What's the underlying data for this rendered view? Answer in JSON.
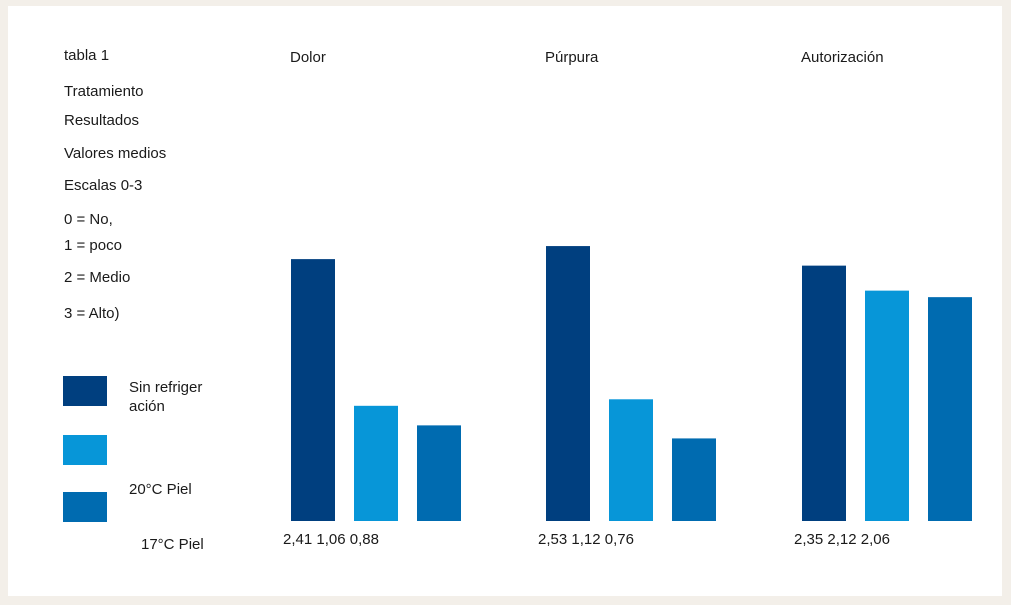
{
  "notes": {
    "table_label": "tabla 1",
    "treatment": "Tratamiento",
    "results": "Resultados",
    "mean_values": "Valores medios",
    "scale": "Escalas 0-3",
    "scale_0": "0 = No,",
    "scale_1": "1 = poco",
    "scale_2": "2 = Medio",
    "scale_3": "3 = Alto)"
  },
  "legend": [
    {
      "label": "Sin refrigeración",
      "color": "#003f7f"
    },
    {
      "label": "20°C Piel",
      "color": "#0796d8"
    },
    {
      "label": "17°C Piel",
      "color": "#006bb0"
    }
  ],
  "chart_data": {
    "type": "bar",
    "categories": [
      "Dolor",
      "Púrpura",
      "Autorización"
    ],
    "series": [
      {
        "name": "Sin refrigeración",
        "color": "#003f7f",
        "values": [
          2.41,
          2.53,
          2.35
        ]
      },
      {
        "name": "20°C Piel",
        "color": "#0796d8",
        "values": [
          1.06,
          1.12,
          2.12
        ]
      },
      {
        "name": "17°C Piel",
        "color": "#006bb0",
        "values": [
          0.88,
          0.76,
          2.06
        ]
      }
    ],
    "value_labels": [
      "2,41 1,06 0,88",
      "2,53 1,12 0,76",
      "2,35 2,12 2,06"
    ],
    "ylim": [
      0,
      3
    ],
    "grid": false,
    "legend_position": "left"
  }
}
